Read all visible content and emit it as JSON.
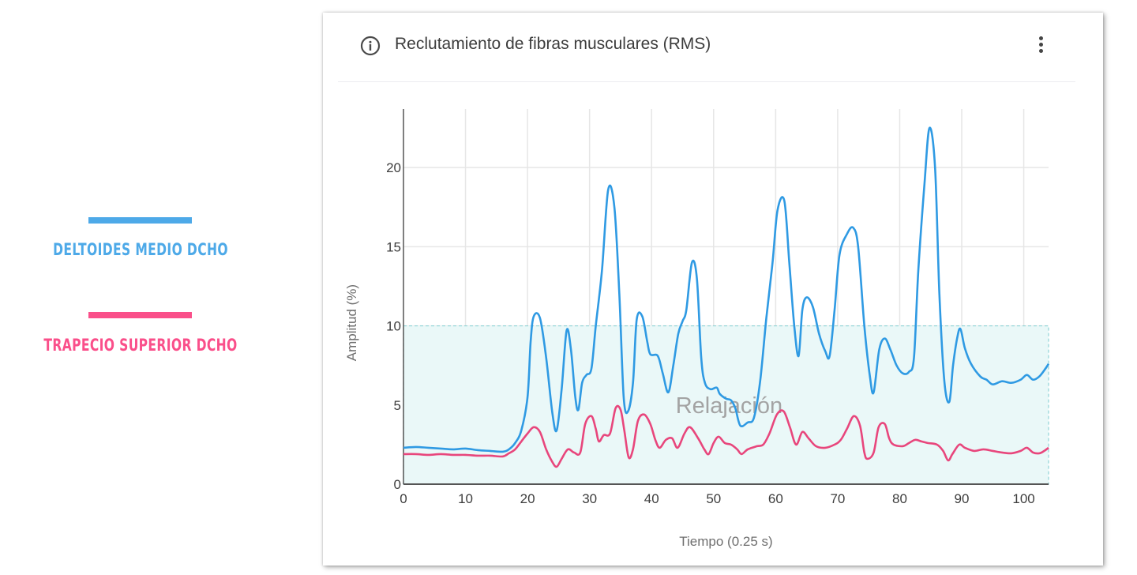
{
  "legend": {
    "items": [
      {
        "label": "DELTOIDES MEDIO DCHO",
        "color": "#4da9e8"
      },
      {
        "label": "TRAPECIO SUPERIOR DCHO",
        "color": "#fa4f8a"
      }
    ]
  },
  "card": {
    "title": "Reclutamiento de fibras musculares (RMS)",
    "info_icon": "info-circle-icon",
    "menu_icon": "more-vertical-icon"
  },
  "chart_data": {
    "type": "line",
    "title": "Reclutamiento de fibras musculares (RMS)",
    "xlabel": "Tiempo (0.25 s)",
    "ylabel": "Amplitud (%)",
    "xlim": [
      0,
      104
    ],
    "ylim": [
      0,
      23.7
    ],
    "x_ticks": [
      0,
      10,
      20,
      30,
      40,
      50,
      60,
      70,
      80,
      90,
      100
    ],
    "y_ticks": [
      0,
      5,
      10,
      15,
      20
    ],
    "grid": true,
    "legend_position": "left-outside",
    "annotations": [
      {
        "type": "band",
        "y0": 0,
        "y1": 10,
        "x0": 0,
        "x1": 104,
        "label": "Relajación",
        "color": "#e9f8f8",
        "border": "#8fd3d6"
      }
    ],
    "series": [
      {
        "name": "DELTOIDES MEDIO DCHO",
        "color": "#2f9ae3",
        "points": [
          [
            0,
            2.3
          ],
          [
            2,
            2.35
          ],
          [
            4,
            2.3
          ],
          [
            6,
            2.25
          ],
          [
            8,
            2.2
          ],
          [
            10,
            2.25
          ],
          [
            12,
            2.15
          ],
          [
            14,
            2.1
          ],
          [
            16,
            2.05
          ],
          [
            17,
            2.2
          ],
          [
            18,
            2.6
          ],
          [
            19,
            3.4
          ],
          [
            20,
            5.5
          ],
          [
            20.5,
            9.0
          ],
          [
            21,
            10.6
          ],
          [
            22,
            10.5
          ],
          [
            23,
            8.0
          ],
          [
            24,
            4.5
          ],
          [
            24.7,
            3.4
          ],
          [
            25.5,
            6.0
          ],
          [
            26.3,
            9.7
          ],
          [
            27,
            8.5
          ],
          [
            27.7,
            5.5
          ],
          [
            28.2,
            4.7
          ],
          [
            28.8,
            6.4
          ],
          [
            29.5,
            6.9
          ],
          [
            30.3,
            7.3
          ],
          [
            31,
            10.0
          ],
          [
            32,
            13.5
          ],
          [
            33,
            18.6
          ],
          [
            34,
            17.5
          ],
          [
            34.8,
            12.0
          ],
          [
            35.5,
            5.5
          ],
          [
            36.2,
            4.6
          ],
          [
            37,
            6.4
          ],
          [
            37.6,
            10.4
          ],
          [
            38.5,
            10.6
          ],
          [
            39.3,
            9.0
          ],
          [
            39.8,
            8.2
          ],
          [
            41,
            8.1
          ],
          [
            41.8,
            7.0
          ],
          [
            42.7,
            5.8
          ],
          [
            43.5,
            7.5
          ],
          [
            44.3,
            9.5
          ],
          [
            45,
            10.3
          ],
          [
            45.6,
            11.0
          ],
          [
            46.5,
            14.0
          ],
          [
            47.3,
            13.0
          ],
          [
            48,
            8.0
          ],
          [
            48.6,
            6.4
          ],
          [
            49.5,
            6.0
          ],
          [
            50.5,
            6.1
          ],
          [
            51,
            5.7
          ],
          [
            52,
            5.4
          ],
          [
            52.8,
            5.3
          ],
          [
            53.5,
            4.8
          ],
          [
            54.3,
            3.7
          ],
          [
            55.5,
            3.9
          ],
          [
            56.5,
            4.2
          ],
          [
            57.5,
            6.5
          ],
          [
            58.5,
            10.5
          ],
          [
            59.5,
            14.0
          ],
          [
            60.3,
            17.3
          ],
          [
            61.4,
            17.9
          ],
          [
            62.2,
            14.0
          ],
          [
            63,
            10.0
          ],
          [
            63.7,
            8.1
          ],
          [
            64.3,
            11.0
          ],
          [
            65,
            11.8
          ],
          [
            66,
            11.2
          ],
          [
            67,
            9.5
          ],
          [
            68,
            8.4
          ],
          [
            68.7,
            8.1
          ],
          [
            69.5,
            11.0
          ],
          [
            70.3,
            14.5
          ],
          [
            71.5,
            15.8
          ],
          [
            72.5,
            16.2
          ],
          [
            73.3,
            15.0
          ],
          [
            74.3,
            10.0
          ],
          [
            75.2,
            6.8
          ],
          [
            75.8,
            5.8
          ],
          [
            76.7,
            8.5
          ],
          [
            77.6,
            9.2
          ],
          [
            78.5,
            8.5
          ],
          [
            79.5,
            7.5
          ],
          [
            80.5,
            7.0
          ],
          [
            81.5,
            7.1
          ],
          [
            82.3,
            8.0
          ],
          [
            83,
            13.5
          ],
          [
            84,
            19.0
          ],
          [
            84.8,
            22.5
          ],
          [
            85.7,
            20.0
          ],
          [
            86.4,
            12.0
          ],
          [
            87.2,
            6.5
          ],
          [
            88,
            5.2
          ],
          [
            88.6,
            7.5
          ],
          [
            89.3,
            9.3
          ],
          [
            89.8,
            9.8
          ],
          [
            90.5,
            8.6
          ],
          [
            91.5,
            7.6
          ],
          [
            93,
            6.8
          ],
          [
            94,
            6.6
          ],
          [
            95,
            6.3
          ],
          [
            96.5,
            6.5
          ],
          [
            98,
            6.4
          ],
          [
            99.5,
            6.6
          ],
          [
            100.5,
            6.9
          ],
          [
            101.5,
            6.6
          ],
          [
            102.5,
            6.8
          ],
          [
            103.5,
            7.3
          ],
          [
            104,
            7.6
          ]
        ]
      },
      {
        "name": "TRAPECIO SUPERIOR DCHO",
        "color": "#e8467c",
        "points": [
          [
            0,
            1.9
          ],
          [
            2,
            1.9
          ],
          [
            4,
            1.85
          ],
          [
            6,
            1.9
          ],
          [
            8,
            1.85
          ],
          [
            10,
            1.85
          ],
          [
            12,
            1.8
          ],
          [
            14,
            1.8
          ],
          [
            16,
            1.75
          ],
          [
            17,
            1.95
          ],
          [
            18,
            2.2
          ],
          [
            19,
            2.7
          ],
          [
            20,
            3.2
          ],
          [
            21,
            3.6
          ],
          [
            22,
            3.3
          ],
          [
            23,
            2.2
          ],
          [
            24,
            1.4
          ],
          [
            24.7,
            1.1
          ],
          [
            25.5,
            1.6
          ],
          [
            26.5,
            2.2
          ],
          [
            27.5,
            2.0
          ],
          [
            28.5,
            2.0
          ],
          [
            29.3,
            3.8
          ],
          [
            30.3,
            4.3
          ],
          [
            31,
            3.5
          ],
          [
            31.5,
            2.7
          ],
          [
            32.3,
            3.1
          ],
          [
            33.3,
            3.2
          ],
          [
            34.2,
            4.8
          ],
          [
            35,
            4.7
          ],
          [
            35.6,
            3.4
          ],
          [
            36.3,
            1.7
          ],
          [
            37,
            2.2
          ],
          [
            37.8,
            4.0
          ],
          [
            38.8,
            4.4
          ],
          [
            39.8,
            3.8
          ],
          [
            40.6,
            2.8
          ],
          [
            41.3,
            2.3
          ],
          [
            42.3,
            2.8
          ],
          [
            43.3,
            2.9
          ],
          [
            44.2,
            2.3
          ],
          [
            45.3,
            3.2
          ],
          [
            46.2,
            3.6
          ],
          [
            47.5,
            2.9
          ],
          [
            48.5,
            2.2
          ],
          [
            49.2,
            1.9
          ],
          [
            50,
            2.6
          ],
          [
            50.8,
            3.0
          ],
          [
            51.8,
            2.6
          ],
          [
            52.8,
            2.5
          ],
          [
            53.8,
            2.2
          ],
          [
            54.5,
            1.9
          ],
          [
            55.5,
            2.2
          ],
          [
            57,
            2.4
          ],
          [
            58,
            2.5
          ],
          [
            59,
            3.2
          ],
          [
            60.2,
            4.4
          ],
          [
            61.3,
            4.6
          ],
          [
            62.3,
            3.6
          ],
          [
            63.3,
            2.5
          ],
          [
            64.3,
            3.3
          ],
          [
            65.3,
            2.9
          ],
          [
            66.5,
            2.4
          ],
          [
            68,
            2.3
          ],
          [
            69.5,
            2.5
          ],
          [
            70.5,
            2.8
          ],
          [
            71.5,
            3.5
          ],
          [
            72.6,
            4.3
          ],
          [
            73.6,
            3.7
          ],
          [
            74.3,
            2.0
          ],
          [
            74.8,
            1.6
          ],
          [
            75.8,
            2.0
          ],
          [
            76.6,
            3.6
          ],
          [
            77.6,
            3.8
          ],
          [
            78.3,
            2.9
          ],
          [
            79,
            2.5
          ],
          [
            80.5,
            2.4
          ],
          [
            81.5,
            2.6
          ],
          [
            82.5,
            2.8
          ],
          [
            83.5,
            2.7
          ],
          [
            84.5,
            2.6
          ],
          [
            86,
            2.5
          ],
          [
            87,
            2.1
          ],
          [
            87.8,
            1.5
          ],
          [
            88.5,
            1.9
          ],
          [
            89.6,
            2.5
          ],
          [
            90.5,
            2.3
          ],
          [
            92,
            2.1
          ],
          [
            93.5,
            2.2
          ],
          [
            95,
            2.1
          ],
          [
            96.5,
            2.0
          ],
          [
            98,
            1.95
          ],
          [
            99.5,
            2.1
          ],
          [
            100.5,
            2.3
          ],
          [
            101.5,
            2.0
          ],
          [
            102.5,
            1.95
          ],
          [
            103.3,
            2.1
          ],
          [
            104,
            2.3
          ]
        ]
      }
    ]
  }
}
